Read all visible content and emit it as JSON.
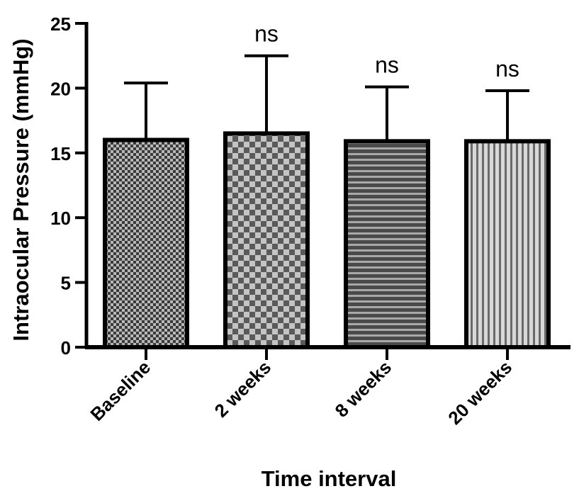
{
  "chart_data": {
    "type": "bar",
    "title": "",
    "xlabel": "Time interval",
    "ylabel": "Intraocular Pressure (mmHg)",
    "ylim": [
      0,
      25
    ],
    "yticks": [
      "0",
      "5",
      "10",
      "15",
      "20",
      "25"
    ],
    "categories": [
      "Baseline",
      "2 weeks",
      "8 weeks",
      "20 weeks"
    ],
    "values": [
      16.0,
      16.5,
      15.9,
      15.9
    ],
    "error_upper": [
      20.4,
      22.5,
      20.1,
      19.8
    ],
    "annotations": [
      "",
      "ns",
      "ns",
      "ns"
    ],
    "patterns": [
      "fine-checker",
      "coarse-checker",
      "horizontal-stripes",
      "vertical-stripes"
    ],
    "grid": false,
    "legend": "none"
  }
}
